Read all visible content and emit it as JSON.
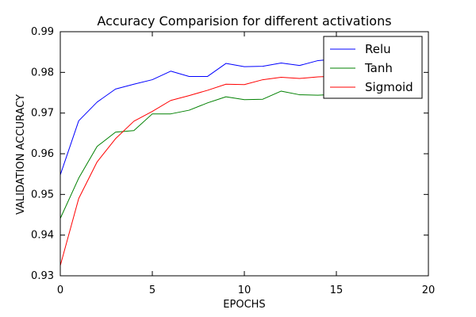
{
  "chart_data": {
    "type": "line",
    "title": "Accuracy Comparision for different activations",
    "xlabel": "EPOCHS",
    "ylabel": "VALIDATION ACCURACY",
    "xlim": [
      0,
      20
    ],
    "ylim": [
      0.93,
      0.99
    ],
    "xticks": [
      0,
      5,
      10,
      15,
      20
    ],
    "yticks": [
      0.93,
      0.94,
      0.95,
      0.96,
      0.97,
      0.98,
      0.99
    ],
    "xtick_labels": [
      "0",
      "5",
      "10",
      "15",
      "20"
    ],
    "ytick_labels": [
      "0.93",
      "0.94",
      "0.95",
      "0.96",
      "0.97",
      "0.98",
      "0.99"
    ],
    "grid": false,
    "legend": "top-right",
    "x": [
      0,
      1,
      2,
      3,
      4,
      5,
      6,
      7,
      8,
      9,
      10,
      11,
      12,
      13,
      14,
      15,
      16,
      17,
      18,
      19
    ],
    "series": [
      {
        "name": "Relu",
        "color": "#0000ff",
        "values": [
          0.9548,
          0.9681,
          0.9727,
          0.9759,
          0.9771,
          0.9782,
          0.9803,
          0.979,
          0.979,
          0.9822,
          0.9814,
          0.9815,
          0.9823,
          0.9817,
          0.9829,
          0.9833,
          0.9835,
          0.9837,
          0.9838,
          0.984
        ]
      },
      {
        "name": "Tanh",
        "color": "#008000",
        "values": [
          0.9441,
          0.954,
          0.9618,
          0.9653,
          0.9657,
          0.9698,
          0.9698,
          0.9707,
          0.9725,
          0.974,
          0.9733,
          0.9734,
          0.9754,
          0.9745,
          0.9744,
          0.9746,
          0.9748,
          0.975,
          0.9752,
          0.9754
        ]
      },
      {
        "name": "Sigmoid",
        "color": "#ff0000",
        "values": [
          0.9325,
          0.949,
          0.958,
          0.9637,
          0.968,
          0.9704,
          0.9731,
          0.9743,
          0.9756,
          0.9771,
          0.977,
          0.9782,
          0.9788,
          0.9785,
          0.9789,
          0.9791,
          0.9793,
          0.9795,
          0.9796,
          0.9798
        ]
      }
    ]
  }
}
